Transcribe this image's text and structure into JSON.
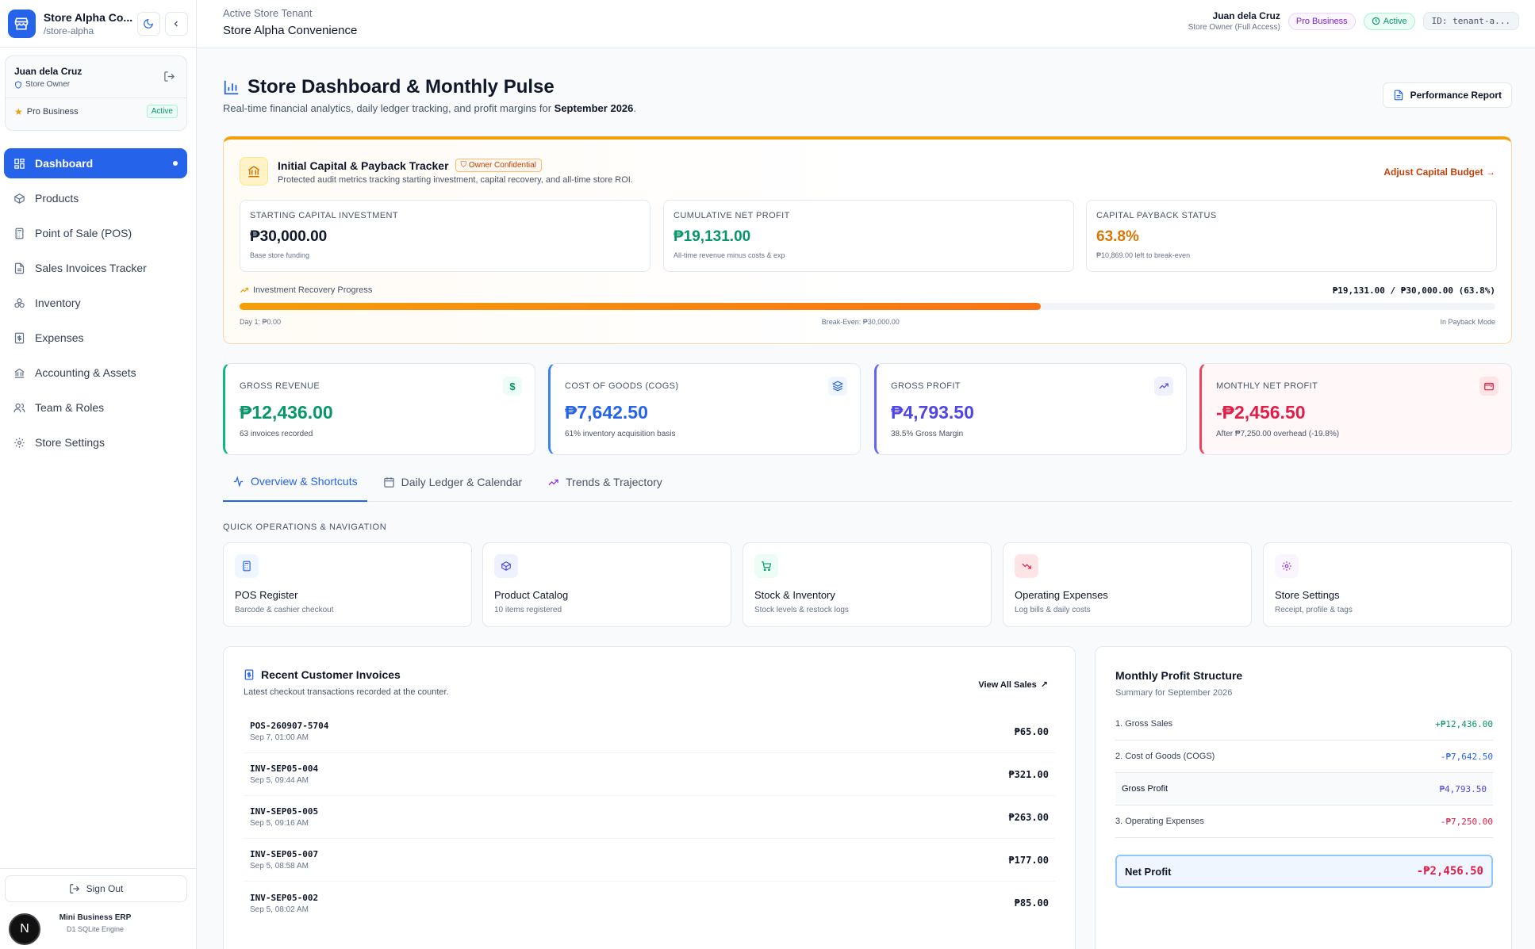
{
  "sidebar": {
    "brand_name": "Store Alpha Co...",
    "brand_slug": "/store-alpha",
    "user_name": "Juan dela Cruz",
    "user_role": "Store Owner",
    "plan": "Pro Business",
    "plan_status": "Active",
    "nav": [
      {
        "label": "Dashboard",
        "icon": "grid-icon"
      },
      {
        "label": "Products",
        "icon": "box-icon"
      },
      {
        "label": "Point of Sale (POS)",
        "icon": "calculator-icon"
      },
      {
        "label": "Sales Invoices Tracker",
        "icon": "file-icon"
      },
      {
        "label": "Inventory",
        "icon": "boxes-icon"
      },
      {
        "label": "Expenses",
        "icon": "receipt-icon"
      },
      {
        "label": "Accounting & Assets",
        "icon": "bank-icon"
      },
      {
        "label": "Team & Roles",
        "icon": "users-icon"
      },
      {
        "label": "Store Settings",
        "icon": "gear-icon"
      }
    ],
    "sign_out": "Sign Out",
    "avatar_letter": "N",
    "footer_title": "Mini Business ERP",
    "footer_sub": "D1 SQLite Engine"
  },
  "topbar": {
    "tenant_label": "Active Store Tenant",
    "store_name": "Store Alpha Convenience",
    "user_name": "Juan dela Cruz",
    "user_role": "Store Owner (Full Access)",
    "plan": "Pro Business",
    "status": "Active",
    "tenant_id": "ID: tenant-a..."
  },
  "header": {
    "title": "Store Dashboard & Monthly Pulse",
    "subtitle_prefix": "Real-time financial analytics, daily ledger tracking, and profit margins for",
    "period": "September 2026",
    "subtitle_suffix": ".",
    "report_button": "Performance Report"
  },
  "capital": {
    "title": "Initial Capital & Payback Tracker",
    "badge": "Owner Confidential",
    "subtitle": "Protected audit metrics tracking starting investment, capital recovery, and all-time store ROI.",
    "adjust": "Adjust Capital Budget →",
    "boxes": [
      {
        "label": "STARTING CAPITAL INVESTMENT",
        "value": "₱30,000.00",
        "hint": "Base store funding",
        "color": "#0f172a"
      },
      {
        "label": "CUMULATIVE NET PROFIT",
        "value": "₱19,131.00",
        "hint": "All-time revenue minus costs & exp",
        "color": "#059669"
      },
      {
        "label": "CAPITAL PAYBACK STATUS",
        "value": "63.8%",
        "hint": "₱10,869.00 left to break-even",
        "color": "#d97706"
      }
    ],
    "progress_label": "Investment Recovery Progress",
    "progress_value": "₱19,131.00 / ₱30,000.00 (63.8%)",
    "progress_fraction": 0.638,
    "tick_start": "Day 1: ₱0.00",
    "tick_mid": "Break-Even: ₱30,000.00",
    "tick_end": "In Payback Mode"
  },
  "kpis": [
    {
      "label": "GROSS REVENUE",
      "value": "₱12,436.00",
      "hint": "63 invoices recorded",
      "color": "#059669",
      "icon": "dollar-icon"
    },
    {
      "label": "COST OF GOODS (COGS)",
      "value": "₱7,642.50",
      "hint": "61% inventory acquisition basis",
      "color": "#2563eb",
      "icon": "layers-icon"
    },
    {
      "label": "GROSS PROFIT",
      "value": "₱4,793.50",
      "hint": "38.5% Gross Margin",
      "color": "#4f46e5",
      "icon": "trending-up-icon"
    },
    {
      "label": "MONTHLY NET PROFIT",
      "value": "-₱2,456.50",
      "hint": "After ₱7,250.00 overhead (-19.8%)",
      "color": "#e11d48",
      "icon": "wallet-icon"
    }
  ],
  "tabs": [
    {
      "label": "Overview & Shortcuts"
    },
    {
      "label": "Daily Ledger & Calendar"
    },
    {
      "label": "Trends & Trajectory"
    }
  ],
  "quick_ops": {
    "label": "QUICK OPERATIONS & NAVIGATION",
    "items": [
      {
        "title": "POS Register",
        "sub": "Barcode & cashier checkout",
        "icon": "calculator-icon"
      },
      {
        "title": "Product Catalog",
        "sub": "10 items registered",
        "icon": "box-icon"
      },
      {
        "title": "Stock & Inventory",
        "sub": "Stock levels & restock logs",
        "icon": "cart-icon"
      },
      {
        "title": "Operating Expenses",
        "sub": "Log bills & daily costs",
        "icon": "trending-down-icon"
      },
      {
        "title": "Store Settings",
        "sub": "Receipt, profile & tags",
        "icon": "gear-icon"
      }
    ]
  },
  "invoices": {
    "title": "Recent Customer Invoices",
    "subtitle": "Latest checkout transactions recorded at the counter.",
    "view_all": "View All Sales",
    "rows": [
      {
        "id": "POS-260907-5704",
        "date": "Sep 7, 01:00 AM",
        "amount": "₱65.00"
      },
      {
        "id": "INV-SEP05-004",
        "date": "Sep 5, 09:44 AM",
        "amount": "₱321.00"
      },
      {
        "id": "INV-SEP05-005",
        "date": "Sep 5, 09:16 AM",
        "amount": "₱263.00"
      },
      {
        "id": "INV-SEP05-007",
        "date": "Sep 5, 08:58 AM",
        "amount": "₱177.00"
      },
      {
        "id": "INV-SEP05-002",
        "date": "Sep 5, 08:02 AM",
        "amount": "₱85.00"
      }
    ]
  },
  "profit_structure": {
    "title": "Monthly Profit Structure",
    "subtitle": "Summary for September 2026",
    "rows": [
      {
        "label": "1. Gross Sales",
        "value": "+₱12,436.00",
        "color": "#059669"
      },
      {
        "label": "2. Cost of Goods (COGS)",
        "value": "-₱7,642.50",
        "color": "#2563eb"
      },
      {
        "label": "Gross Profit",
        "value": "₱4,793.50",
        "color": "#4f46e5"
      },
      {
        "label": "3. Operating Expenses",
        "value": "-₱7,250.00",
        "color": "#e11d48"
      }
    ],
    "net_label": "Net Profit",
    "net_value": "-₱2,456.50"
  }
}
